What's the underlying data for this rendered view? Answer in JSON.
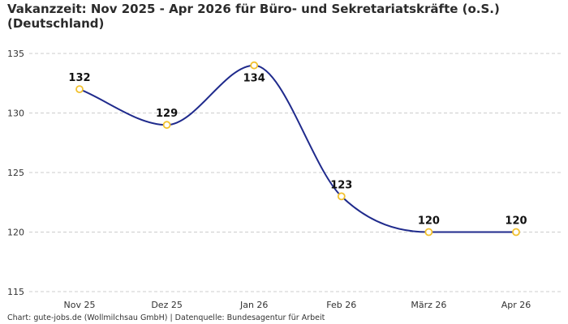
{
  "header": {
    "title_line1": "Vakanzzeit: Nov 2025 - Apr 2026 für Büro- und Sekretariatskräfte (o.S.)",
    "title_line2": "(Deutschland)"
  },
  "footer": {
    "text": "Chart: gute-jobs.de (Wollmilchsau GmbH) | Datenquelle: Bundesagentur für Arbeit"
  },
  "colors": {
    "line": "#1f2a8c",
    "marker_stroke": "#f2c12e",
    "marker_fill": "#ffffff",
    "grid": "#cccccc"
  },
  "chart_data": {
    "type": "line",
    "title": "Vakanzzeit: Nov 2025 - Apr 2026 für Büro- und Sekretariatskräfte (o.S.) (Deutschland)",
    "categories": [
      "Nov 25",
      "Dez 25",
      "Jan 26",
      "Feb 26",
      "März 26",
      "Apr 26"
    ],
    "values": [
      132,
      129,
      134,
      123,
      120,
      120
    ],
    "value_labels": [
      "132",
      "129",
      "134",
      "123",
      "120",
      "120"
    ],
    "ylim": [
      115,
      135
    ],
    "yticks": [
      115,
      120,
      125,
      130,
      135
    ],
    "ytick_labels": [
      "115",
      "120",
      "125",
      "130",
      "135"
    ],
    "grid": "horizontal dashed",
    "legend": "none",
    "smooth": true
  }
}
